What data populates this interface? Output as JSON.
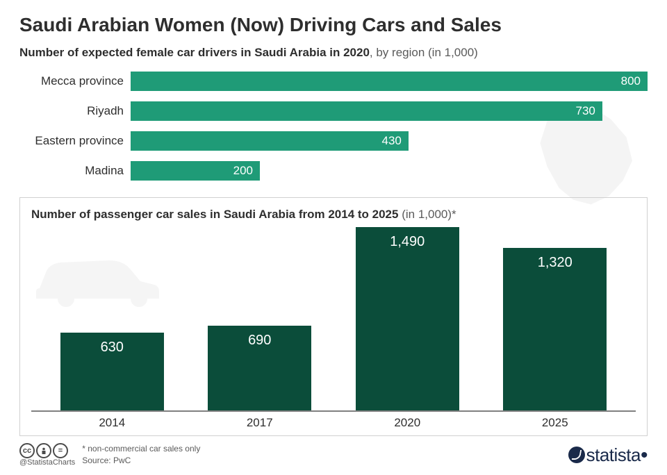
{
  "title": "Saudi Arabian Women (Now) Driving Cars and Sales",
  "hbar": {
    "subtitle_bold": "Number of expected female car drivers in Saudi Arabia in 2020",
    "subtitle_light": ", by region (in 1,000)",
    "bar_color": "#1f9b77",
    "max_value": 800,
    "items": [
      {
        "label": "Mecca province",
        "value": 800,
        "display": "800"
      },
      {
        "label": "Riyadh",
        "value": 730,
        "display": "730"
      },
      {
        "label": "Eastern province",
        "value": 430,
        "display": "430"
      },
      {
        "label": "Madina",
        "value": 200,
        "display": "200"
      }
    ]
  },
  "vbar": {
    "subtitle_bold": "Number of passenger car sales in Saudi Arabia from 2014 to 2025",
    "subtitle_light": " (in 1,000)*",
    "bar_color": "#0b4d3a",
    "max_value": 1490,
    "items": [
      {
        "label": "2014",
        "value": 630,
        "display": "630"
      },
      {
        "label": "2017",
        "value": 690,
        "display": "690"
      },
      {
        "label": "2020",
        "value": 1490,
        "display": "1,490"
      },
      {
        "label": "2025",
        "value": 1320,
        "display": "1,320"
      }
    ]
  },
  "footer": {
    "handle": "@StatistaCharts",
    "note": "* non-commercial car sales only",
    "source": "Source: PwC",
    "brand": "statista"
  },
  "silhouette_color": "#7a7a7a"
}
